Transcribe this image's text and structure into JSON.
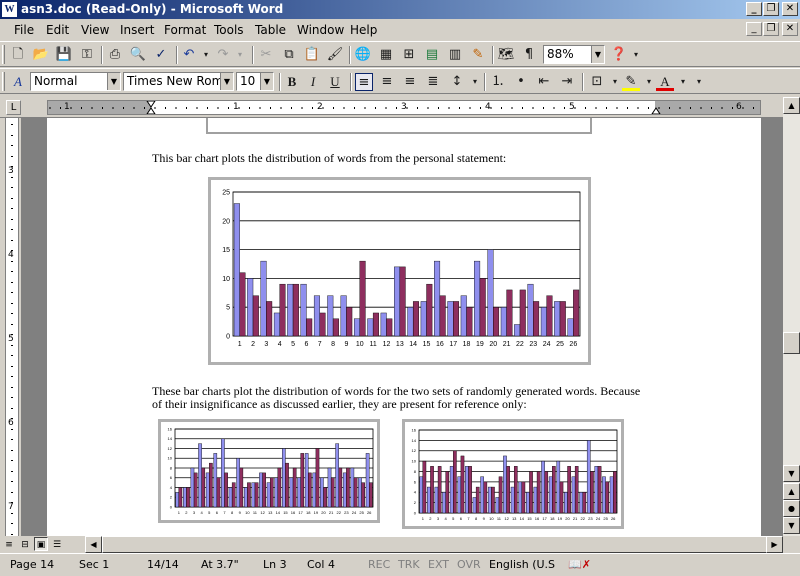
{
  "window": {
    "title": "asn3.doc (Read-Only) - Microsoft Word",
    "app_icon": "W"
  },
  "menu": [
    "File",
    "Edit",
    "View",
    "Insert",
    "Format",
    "Tools",
    "Table",
    "Window",
    "Help"
  ],
  "toolbar": {
    "zoom": "88%"
  },
  "format": {
    "style": "Normal",
    "font": "Times New Roman",
    "size": "10",
    "bold": "B",
    "italic": "I",
    "underline": "U"
  },
  "ruler": {
    "h": [
      "1",
      "1",
      "2",
      "3",
      "4",
      "5",
      "6"
    ],
    "v": [
      "3",
      "4",
      "5",
      "6",
      "7"
    ]
  },
  "document": {
    "para1": "This bar chart plots the distribution of words from the personal statement:",
    "para2": "These bar charts plot the distribution of words for the two sets of randomly generated words. Because of their insignificance as discussed earlier, they are present for reference only:"
  },
  "chart_data": [
    {
      "type": "bar",
      "categories": [
        "1",
        "2",
        "3",
        "4",
        "5",
        "6",
        "7",
        "8",
        "9",
        "10",
        "11",
        "12",
        "13",
        "14",
        "15",
        "16",
        "17",
        "18",
        "19",
        "20",
        "21",
        "22",
        "23",
        "24",
        "25",
        "26"
      ],
      "series": [
        {
          "values": [
            23,
            10,
            13,
            4,
            9,
            9,
            7,
            7,
            7,
            3,
            3,
            4,
            12,
            5,
            6,
            13,
            6,
            7,
            13,
            15,
            5,
            2,
            9,
            5,
            6,
            3
          ]
        },
        {
          "values": [
            11,
            7,
            6,
            9,
            9,
            3,
            4,
            3,
            5,
            13,
            4,
            3,
            12,
            6,
            9,
            7,
            6,
            5,
            10,
            5,
            8,
            8,
            6,
            7,
            6,
            8
          ]
        }
      ],
      "yticks": [
        0,
        5,
        10,
        15,
        20,
        25
      ],
      "ylim": [
        0,
        25
      ],
      "colors": [
        "#8f8fee",
        "#8e2e5e"
      ]
    },
    {
      "type": "bar",
      "categories": [
        "1",
        "2",
        "3",
        "4",
        "5",
        "6",
        "7",
        "8",
        "9",
        "10",
        "11",
        "12",
        "13",
        "14",
        "15",
        "16",
        "17",
        "18",
        "19",
        "20",
        "21",
        "22",
        "23",
        "24",
        "25",
        "26"
      ],
      "series": [
        {
          "values": [
            3,
            4,
            8,
            13,
            7,
            11,
            14,
            4,
            10,
            4,
            5,
            7,
            5,
            6,
            12,
            6,
            6,
            11,
            7,
            6,
            8,
            13,
            7,
            8,
            6,
            11
          ]
        },
        {
          "values": [
            4,
            4,
            7,
            8,
            9,
            6,
            7,
            5,
            8,
            5,
            5,
            7,
            6,
            8,
            9,
            8,
            11,
            7,
            12,
            4,
            6,
            8,
            8,
            6,
            5,
            5
          ]
        }
      ],
      "yticks": [
        0,
        2,
        4,
        6,
        8,
        10,
        12,
        14,
        16
      ],
      "ylim": [
        0,
        16
      ],
      "colors": [
        "#8f8fee",
        "#8e2e5e"
      ]
    },
    {
      "type": "bar",
      "categories": [
        "1",
        "2",
        "3",
        "4",
        "5",
        "6",
        "7",
        "8",
        "9",
        "10",
        "11",
        "12",
        "13",
        "14",
        "15",
        "16",
        "17",
        "18",
        "19",
        "20",
        "21",
        "22",
        "23",
        "24",
        "25",
        "26"
      ],
      "series": [
        {
          "values": [
            7,
            5,
            5,
            4,
            9,
            7,
            9,
            3,
            7,
            5,
            3,
            11,
            5,
            6,
            4,
            5,
            10,
            7,
            10,
            4,
            7,
            4,
            14,
            9,
            7,
            7
          ]
        },
        {
          "values": [
            10,
            9,
            9,
            8,
            12,
            11,
            9,
            5,
            6,
            5,
            7,
            9,
            9,
            6,
            8,
            8,
            8,
            9,
            6,
            9,
            9,
            4,
            8,
            9,
            6,
            8
          ]
        }
      ],
      "yticks": [
        0,
        2,
        4,
        6,
        8,
        10,
        12,
        14,
        16
      ],
      "ylim": [
        0,
        16
      ],
      "colors": [
        "#8f8fee",
        "#8e2e5e"
      ]
    }
  ],
  "status": {
    "page": "Page 14",
    "sec": "Sec 1",
    "of": "14/14",
    "at": "At 3.7\"",
    "ln": "Ln 3",
    "col": "Col 4",
    "rec": "REC",
    "trk": "TRK",
    "ext": "EXT",
    "ovr": "OVR",
    "lang": "English (U.S"
  }
}
